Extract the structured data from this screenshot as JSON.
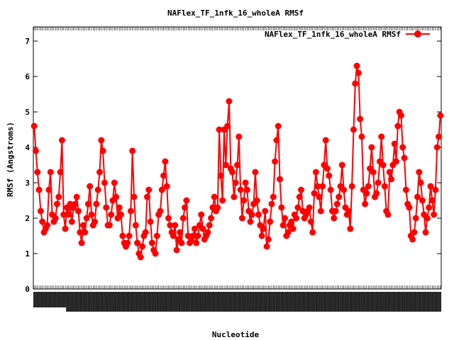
{
  "chart_data": {
    "type": "line",
    "title": "NAFlex_TF_1nfk_16_wholeA RMSf",
    "xlabel": "Nucleotide",
    "ylabel": "RMSf (Angstroms)",
    "ylim": [
      0,
      7.4
    ],
    "yticks": [
      0,
      1,
      2,
      3,
      4,
      5,
      6,
      7
    ],
    "legend_position": "top-right",
    "grid": false,
    "series": [
      {
        "name": "NAFlex_TF_1nfk_16_wholeA RMSf",
        "color": "#ff0000",
        "values": [
          4.6,
          3.9,
          3.3,
          2.8,
          2.2,
          1.9,
          1.6,
          1.7,
          1.8,
          2.8,
          3.3,
          2.1,
          1.9,
          2.0,
          2.4,
          2.6,
          3.3,
          4.2,
          2.1,
          1.7,
          2.3,
          2.1,
          2.4,
          1.9,
          2.3,
          2.4,
          2.6,
          2.2,
          1.6,
          1.3,
          1.8,
          1.6,
          2.0,
          2.4,
          2.9,
          2.1,
          1.8,
          1.9,
          2.4,
          2.8,
          3.3,
          4.2,
          3.9,
          3.0,
          2.3,
          1.8,
          1.8,
          2.1,
          2.5,
          3.0,
          2.6,
          2.0,
          2.3,
          2.1,
          1.5,
          1.3,
          1.2,
          1.3,
          1.5,
          2.2,
          3.9,
          2.6,
          1.8,
          1.3,
          1.0,
          0.9,
          1.2,
          1.5,
          1.6,
          2.6,
          2.8,
          1.9,
          1.3,
          1.1,
          1.0,
          1.5,
          2.1,
          2.2,
          2.8,
          3.2,
          3.6,
          2.9,
          2.0,
          1.8,
          1.6,
          1.5,
          1.8,
          1.1,
          1.4,
          1.6,
          1.3,
          2.0,
          2.3,
          2.5,
          1.5,
          1.3,
          1.4,
          1.5,
          1.7,
          1.3,
          1.5,
          1.8,
          2.1,
          1.7,
          1.4,
          1.5,
          1.6,
          1.8,
          2.0,
          2.3,
          2.6,
          2.2,
          2.3,
          4.5,
          3.2,
          2.5,
          4.5,
          3.5,
          4.6,
          5.3,
          3.4,
          3.3,
          2.6,
          3.0,
          3.5,
          4.3,
          2.8,
          2.0,
          2.5,
          3.0,
          2.8,
          2.2,
          1.9,
          2.1,
          2.4,
          3.3,
          2.5,
          2.1,
          1.8,
          1.5,
          1.7,
          2.2,
          1.2,
          1.4,
          1.9,
          2.4,
          2.6,
          3.6,
          4.2,
          4.6,
          3.1,
          2.3,
          1.8,
          2.0,
          1.5,
          1.6,
          1.8,
          1.9,
          1.7,
          2.1,
          2.0,
          2.3,
          2.6,
          2.8,
          2.2,
          2.0,
          2.1,
          2.2,
          2.3,
          1.9,
          1.6,
          2.7,
          3.3,
          2.9,
          2.6,
          2.2,
          2.9,
          3.5,
          4.2,
          3.4,
          3.2,
          2.8,
          2.2,
          2.0,
          2.2,
          2.4,
          2.6,
          2.9,
          3.5,
          2.8,
          2.3,
          2.1,
          2.2,
          1.7,
          2.9,
          4.5,
          5.8,
          6.3,
          6.1,
          4.8,
          4.3,
          2.8,
          2.4,
          2.7,
          2.9,
          3.4,
          4.0,
          3.3,
          2.6,
          2.7,
          3.0,
          3.6,
          4.3,
          3.5,
          2.9,
          2.2,
          2.1,
          3.3,
          3.1,
          3.5,
          4.1,
          3.6,
          4.6,
          5.0,
          4.9,
          4.0,
          3.7,
          2.8,
          2.4,
          2.3,
          1.5,
          1.4,
          1.6,
          2.0,
          2.6,
          3.3,
          3.0,
          2.5,
          2.1,
          1.6,
          2.0,
          2.3,
          2.9,
          2.5,
          2.1,
          2.8,
          4.0,
          4.3,
          4.9
        ]
      }
    ]
  }
}
